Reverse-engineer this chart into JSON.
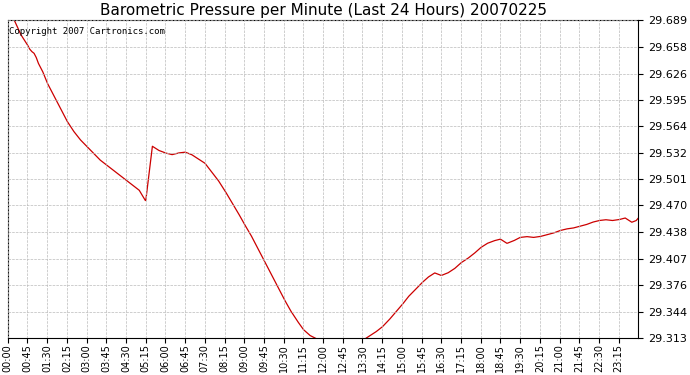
{
  "title": "Barometric Pressure per Minute (Last 24 Hours) 20070225",
  "copyright_text": "Copyright 2007 Cartronics.com",
  "line_color": "#cc0000",
  "background_color": "#ffffff",
  "grid_color": "#bbbbbb",
  "title_fontsize": 11,
  "ylabel_fontsize": 8,
  "xlabel_fontsize": 7,
  "ylim": [
    29.313,
    29.689
  ],
  "yticks": [
    29.313,
    29.344,
    29.376,
    29.407,
    29.438,
    29.47,
    29.501,
    29.532,
    29.564,
    29.595,
    29.626,
    29.658,
    29.689
  ],
  "xtick_labels": [
    "00:00",
    "00:45",
    "01:30",
    "02:15",
    "03:00",
    "03:45",
    "04:30",
    "05:15",
    "06:00",
    "06:45",
    "07:30",
    "08:15",
    "09:00",
    "09:45",
    "10:30",
    "11:15",
    "12:00",
    "12:45",
    "13:30",
    "14:15",
    "15:00",
    "15:45",
    "16:30",
    "17:15",
    "18:00",
    "18:45",
    "19:30",
    "20:15",
    "21:00",
    "21:45",
    "22:30",
    "23:15"
  ],
  "control_points": [
    [
      0,
      29.7
    ],
    [
      15,
      29.689
    ],
    [
      30,
      29.672
    ],
    [
      45,
      29.66
    ],
    [
      50,
      29.655
    ],
    [
      55,
      29.652
    ],
    [
      60,
      29.65
    ],
    [
      65,
      29.645
    ],
    [
      70,
      29.638
    ],
    [
      80,
      29.628
    ],
    [
      90,
      29.615
    ],
    [
      105,
      29.6
    ],
    [
      120,
      29.585
    ],
    [
      135,
      29.57
    ],
    [
      150,
      29.558
    ],
    [
      165,
      29.548
    ],
    [
      180,
      29.54
    ],
    [
      195,
      29.532
    ],
    [
      210,
      29.524
    ],
    [
      225,
      29.518
    ],
    [
      240,
      29.512
    ],
    [
      255,
      29.506
    ],
    [
      270,
      29.5
    ],
    [
      285,
      29.494
    ],
    [
      300,
      29.488
    ],
    [
      315,
      29.475
    ],
    [
      330,
      29.54
    ],
    [
      345,
      29.535
    ],
    [
      360,
      29.532
    ],
    [
      375,
      29.53
    ],
    [
      390,
      29.532
    ],
    [
      405,
      29.533
    ],
    [
      420,
      29.53
    ],
    [
      435,
      29.525
    ],
    [
      450,
      29.52
    ],
    [
      465,
      29.51
    ],
    [
      480,
      29.5
    ],
    [
      495,
      29.488
    ],
    [
      510,
      29.475
    ],
    [
      525,
      29.462
    ],
    [
      540,
      29.448
    ],
    [
      555,
      29.435
    ],
    [
      570,
      29.42
    ],
    [
      585,
      29.405
    ],
    [
      600,
      29.39
    ],
    [
      615,
      29.375
    ],
    [
      630,
      29.36
    ],
    [
      645,
      29.346
    ],
    [
      660,
      29.334
    ],
    [
      675,
      29.323
    ],
    [
      690,
      29.316
    ],
    [
      705,
      29.312
    ],
    [
      720,
      29.31
    ],
    [
      735,
      29.309
    ],
    [
      750,
      29.308
    ],
    [
      765,
      29.307
    ],
    [
      780,
      29.307
    ],
    [
      795,
      29.308
    ],
    [
      810,
      29.31
    ],
    [
      825,
      29.315
    ],
    [
      840,
      29.32
    ],
    [
      855,
      29.326
    ],
    [
      870,
      29.334
    ],
    [
      885,
      29.343
    ],
    [
      900,
      29.352
    ],
    [
      915,
      29.362
    ],
    [
      930,
      29.37
    ],
    [
      945,
      29.378
    ],
    [
      960,
      29.385
    ],
    [
      975,
      29.39
    ],
    [
      990,
      29.387
    ],
    [
      1005,
      29.39
    ],
    [
      1020,
      29.395
    ],
    [
      1035,
      29.402
    ],
    [
      1050,
      29.407
    ],
    [
      1065,
      29.413
    ],
    [
      1080,
      29.42
    ],
    [
      1095,
      29.425
    ],
    [
      1110,
      29.428
    ],
    [
      1125,
      29.43
    ],
    [
      1140,
      29.425
    ],
    [
      1155,
      29.428
    ],
    [
      1170,
      29.432
    ],
    [
      1185,
      29.433
    ],
    [
      1200,
      29.432
    ],
    [
      1215,
      29.433
    ],
    [
      1230,
      29.435
    ],
    [
      1245,
      29.437
    ],
    [
      1260,
      29.44
    ],
    [
      1275,
      29.442
    ],
    [
      1290,
      29.443
    ],
    [
      1305,
      29.445
    ],
    [
      1320,
      29.447
    ],
    [
      1335,
      29.45
    ],
    [
      1350,
      29.452
    ],
    [
      1365,
      29.453
    ],
    [
      1380,
      29.452
    ],
    [
      1395,
      29.453
    ],
    [
      1410,
      29.455
    ],
    [
      1425,
      29.45
    ],
    [
      1435,
      29.452
    ],
    [
      1440,
      29.455
    ]
  ]
}
